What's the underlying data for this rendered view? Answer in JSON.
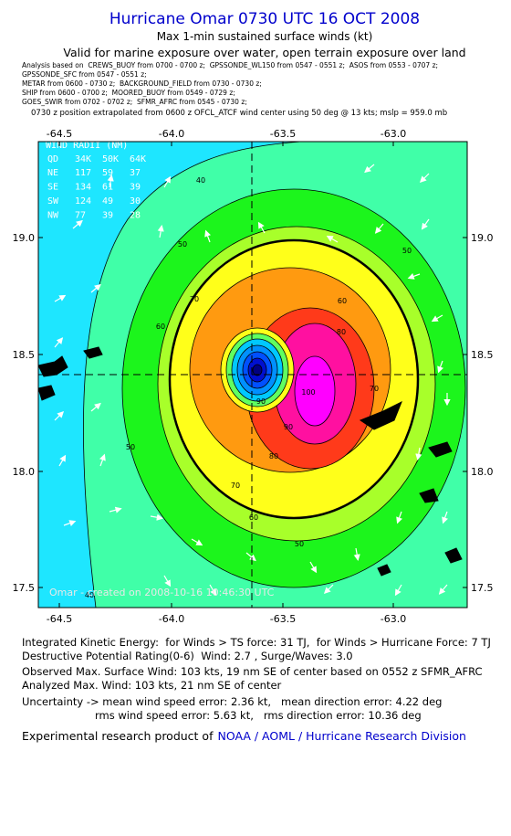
{
  "header": {
    "title": "Hurricane Omar 0730 UTC 16 OCT 2008",
    "subtitle": "Max 1-min sustained surface winds (kt)",
    "validity": "Valid for marine exposure over water, open terrain exposure over land",
    "analysis_lines": [
      "Analysis based on  CREWS_BUOY from 0700 - 0700 z;  GPSSONDE_WL150 from 0547 - 0551 z;  ASOS from 0553 - 0707 z;",
      "GPSSONDE_SFC from 0547 - 0551 z;",
      "METAR from 0600 - 0730 z;  BACKGROUND_FIELD from 0730 - 0730 z;",
      "SHIP from 0600 - 0700 z;  MOORED_BUOY from 0549 - 0729 z;",
      "GOES_SWIR from 0702 - 0702 z;  SFMR_AFRC from 0545 - 0730 z;"
    ],
    "position_note": "0730 z position extrapolated from 0600 z OFCL_ATCF wind center using 50 deg @ 13 kts; mslp = 959.0 mb"
  },
  "map": {
    "x_tick_labels": [
      "-64.5",
      "-64.0",
      "-63.5",
      "-63.0"
    ],
    "y_tick_labels": [
      "19.0",
      "18.5",
      "18.0",
      "17.5"
    ],
    "wind_radii": {
      "title": "WIND RADII (NM)",
      "header": [
        "QD",
        "34K",
        "50K",
        "64K"
      ],
      "rows": [
        [
          "NE",
          "117",
          "59",
          "37"
        ],
        [
          "SE",
          "134",
          "61",
          "39"
        ],
        [
          "SW",
          "124",
          "49",
          "30"
        ],
        [
          "NW",
          "77",
          "39",
          "28"
        ]
      ]
    },
    "contour_labels": [
      "40",
      "50",
      "60",
      "70",
      "50",
      "60",
      "80",
      "70",
      "90",
      "80",
      "70",
      "60",
      "50",
      "50",
      "40",
      "100",
      "90"
    ],
    "credit": "Omar - created on 2008-10-16 10:46:30 UTC"
  },
  "footer": {
    "lines": [
      "Integrated Kinetic Energy:  for Winds > TS force: 31 TJ,  for Winds > Hurricane Force: 7 TJ",
      "Destructive Potential Rating(0-6)  Wind: 2.7 , Surge/Waves: 3.0",
      "Observed Max. Surface Wind: 103 kts, 19 nm SE of center based on 0552 z SFMR_AFRC",
      "Analyzed Max. Wind: 103 kts, 21 nm SE of center",
      "Uncertainty -> mean wind speed error: 2.36 kt,   mean direction error: 4.22 deg",
      "rms wind speed error: 5.63 kt,   rms direction error: 10.36 deg"
    ],
    "product_prefix": "Experimental research product of",
    "product_link": "NOAA / AOML / Hurricane Research Division"
  }
}
